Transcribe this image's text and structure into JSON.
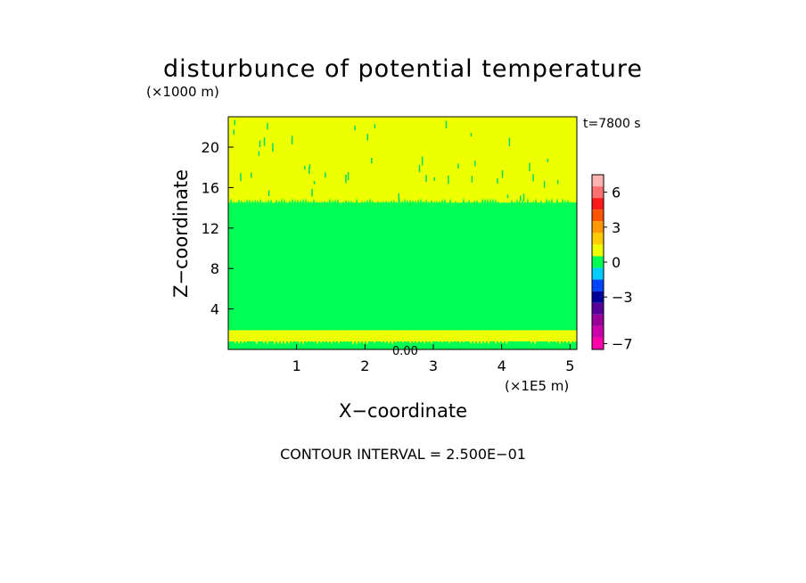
{
  "chart_data": {
    "type": "heatmap",
    "title": "disturbunce of potential temperature",
    "time_label": "t=7800 s",
    "xlabel": "X−coordinate",
    "ylabel": "Z−coordinate",
    "x_unit": "(×1E5 m)",
    "y_unit": "(×1000 m)",
    "x_ticks": [
      "1",
      "2",
      "3",
      "4",
      "5"
    ],
    "y_ticks": [
      "4",
      "8",
      "12",
      "16",
      "20"
    ],
    "xlim": [
      0,
      5.1
    ],
    "ylim": [
      0,
      23
    ],
    "contour_interval_text": "CONTOUR INTERVAL = 2.500E−01",
    "inner_label": "0.00",
    "layers": [
      {
        "z_from": 0.0,
        "z_to": 0.8,
        "color": "#00ff55"
      },
      {
        "z_from": 0.8,
        "z_to": 1.9,
        "color": "#eeff00"
      },
      {
        "z_from": 1.9,
        "z_to": 14.5,
        "color": "#00ff55"
      },
      {
        "z_from": 14.5,
        "z_to": 23.0,
        "color": "#eeff00"
      }
    ],
    "colorbar": {
      "labels": [
        "6",
        "3",
        "0",
        "−3",
        "−7"
      ],
      "label_values": [
        6,
        3,
        0,
        -3,
        -7
      ],
      "colors": [
        "#ffb2b2",
        "#ff7070",
        "#ff1a1a",
        "#ff5500",
        "#ff9900",
        "#ffcc00",
        "#eeff00",
        "#00ff55",
        "#00ccff",
        "#0044ff",
        "#000099",
        "#550099",
        "#990099",
        "#cc00aa",
        "#ff00aa"
      ]
    }
  }
}
